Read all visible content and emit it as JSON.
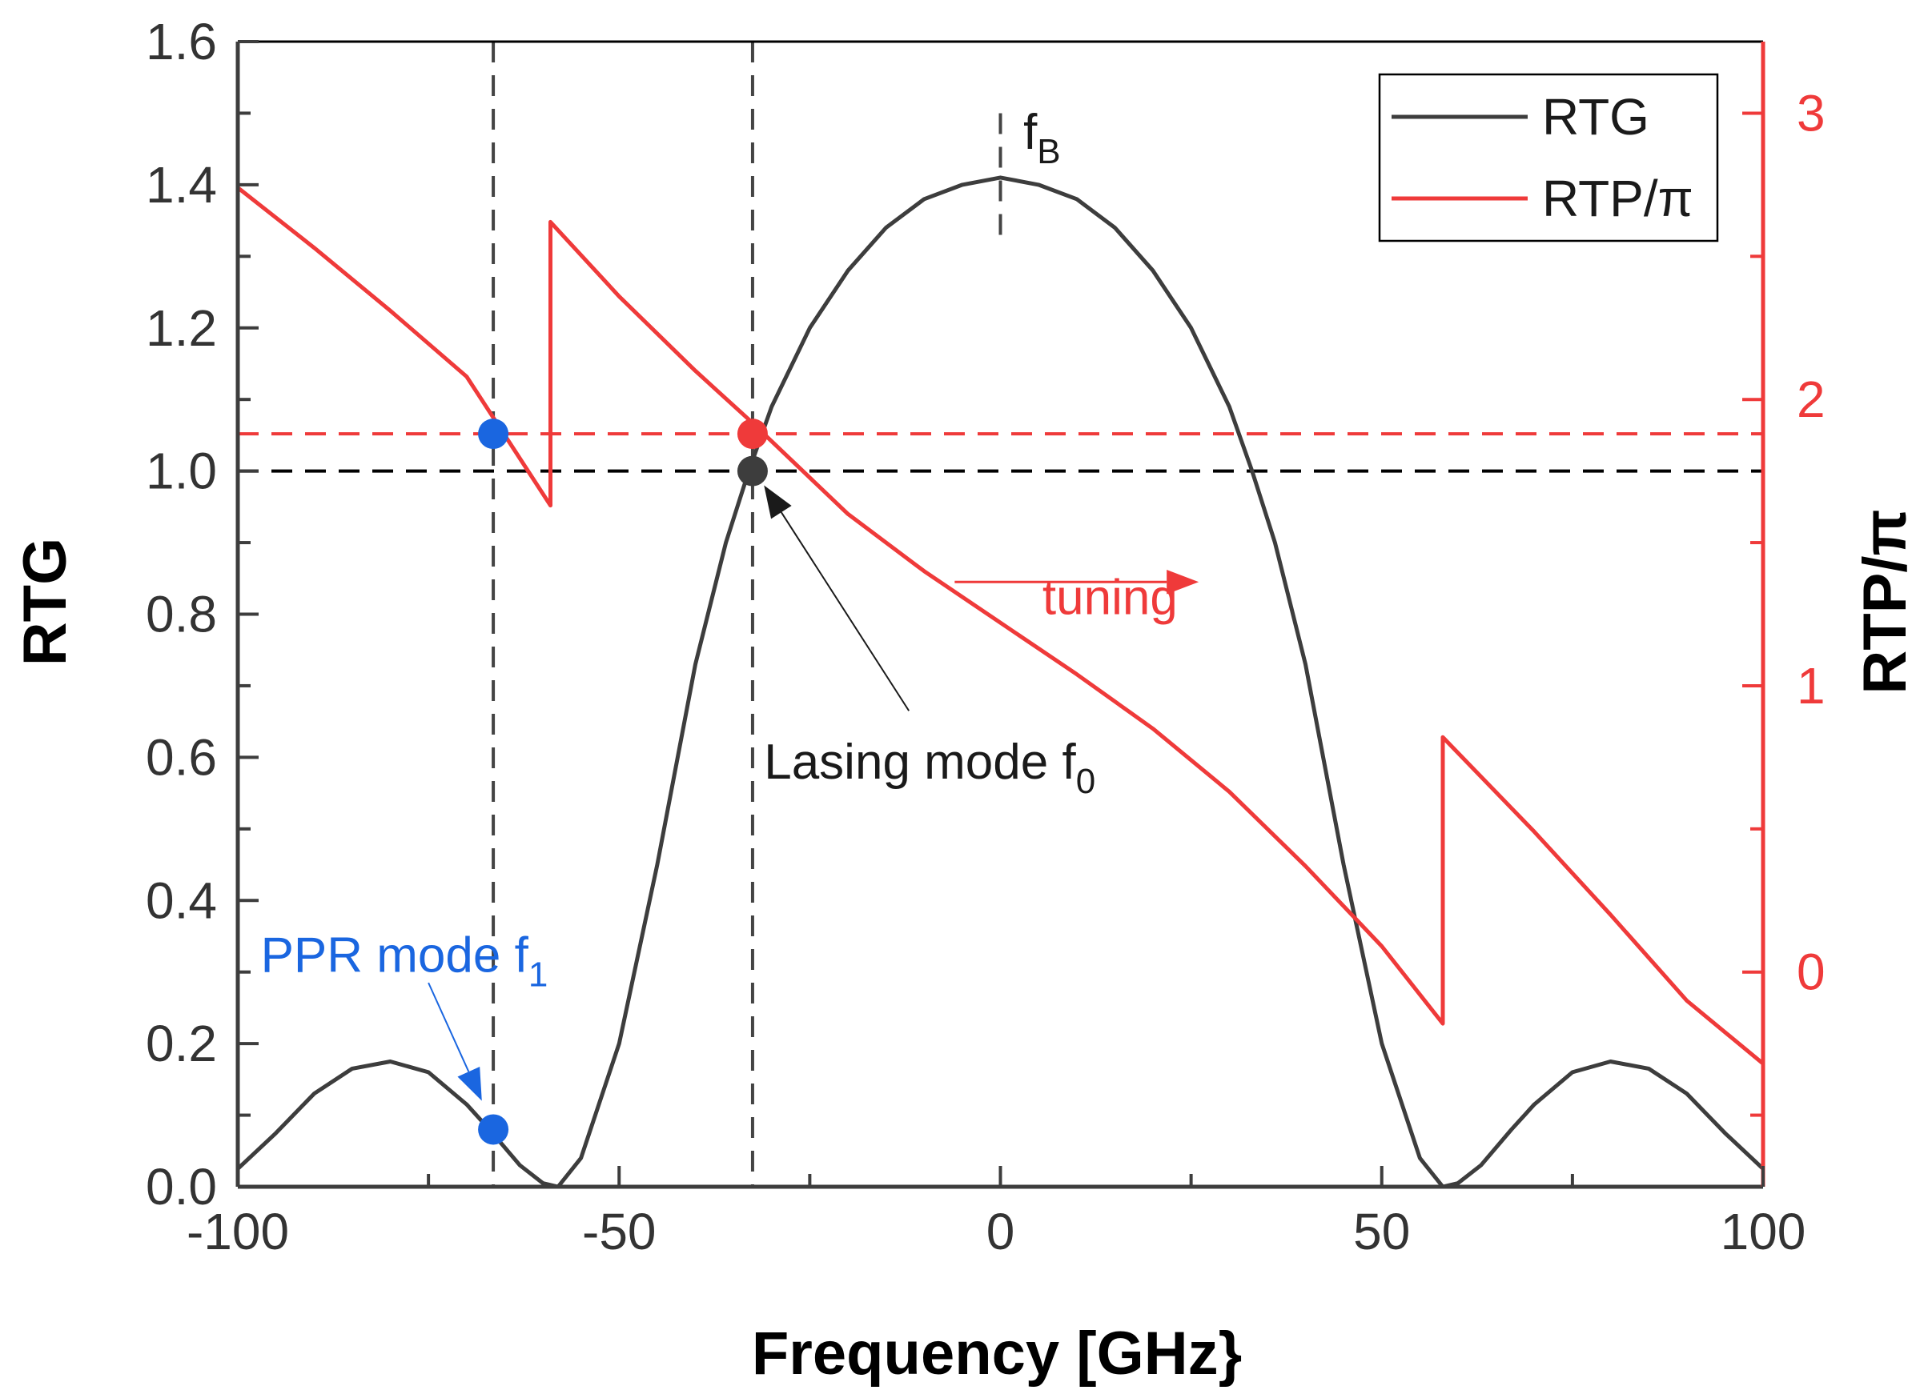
{
  "chart_data": {
    "type": "line",
    "xlabel": "Frequency [GHz}",
    "ylabel_left": "RTG",
    "ylabel_right": "RTP/π",
    "xlim": [
      -100,
      100
    ],
    "ylim_left": [
      0,
      1.6
    ],
    "ylim_right": [
      -0.75,
      3.25
    ],
    "x_ticks": [
      -100,
      -50,
      0,
      50,
      100
    ],
    "x_tick_labels": [
      "-100",
      "-50",
      "0",
      "50",
      "100"
    ],
    "y_left_ticks": [
      0.0,
      0.2,
      0.4,
      0.6,
      0.8,
      1.0,
      1.2,
      1.4,
      1.6
    ],
    "y_left_tick_labels": [
      "0.0",
      "0.2",
      "0.4",
      "0.6",
      "0.8",
      "1.0",
      "1.2",
      "1.4",
      "1.6"
    ],
    "y_right_ticks": [
      0,
      1,
      2,
      3
    ],
    "y_right_tick_labels": [
      "0",
      "1",
      "2",
      "3"
    ],
    "grid": false,
    "legend_position": "top-right",
    "series": [
      {
        "name": "RTG",
        "axis": "left",
        "color": "#3d3d3d",
        "x": [
          -100,
          -95,
          -90,
          -85,
          -80,
          -75,
          -70,
          -67,
          -63,
          -60,
          -58,
          -55,
          -50,
          -45,
          -40,
          -36,
          -33,
          -30,
          -25,
          -20,
          -15,
          -10,
          -5,
          0,
          5,
          10,
          15,
          20,
          25,
          30,
          33,
          36,
          40,
          45,
          50,
          55,
          58,
          60,
          63,
          67,
          70,
          75,
          80,
          85,
          90,
          95,
          100
        ],
        "y": [
          0.025,
          0.075,
          0.13,
          0.165,
          0.175,
          0.16,
          0.115,
          0.08,
          0.03,
          0.005,
          0.0,
          0.04,
          0.2,
          0.45,
          0.73,
          0.9,
          1.0,
          1.09,
          1.2,
          1.28,
          1.34,
          1.38,
          1.4,
          1.41,
          1.4,
          1.38,
          1.34,
          1.28,
          1.2,
          1.09,
          1.0,
          0.9,
          0.73,
          0.45,
          0.2,
          0.04,
          0.0,
          0.005,
          0.03,
          0.08,
          0.115,
          0.16,
          0.175,
          0.165,
          0.13,
          0.075,
          0.025
        ]
      },
      {
        "name": "RTP/π",
        "axis": "right",
        "color": "#ef3a3a",
        "x": [
          -100,
          -90,
          -80,
          -70,
          -59,
          -59,
          -50,
          -40,
          -33,
          -20,
          -10,
          0,
          10,
          20,
          30,
          40,
          50,
          58,
          58,
          70,
          80,
          90,
          100
        ],
        "y": [
          2.74,
          2.53,
          2.31,
          2.08,
          1.63,
          2.62,
          2.36,
          2.1,
          1.93,
          1.6,
          1.4,
          1.22,
          1.04,
          0.85,
          0.63,
          0.37,
          0.09,
          -0.18,
          0.82,
          0.49,
          0.2,
          -0.1,
          -0.32
        ]
      }
    ],
    "reference_lines": [
      {
        "axis": "left",
        "orientation": "horizontal",
        "value": 1.0,
        "color": "#000000",
        "style": "dashed"
      },
      {
        "axis": "right",
        "orientation": "horizontal",
        "value": 1.88,
        "color": "#ef3a3a",
        "style": "dashed"
      },
      {
        "orientation": "vertical",
        "value": -66.5,
        "color": "#444444",
        "style": "dashed"
      },
      {
        "orientation": "vertical",
        "value": -32.5,
        "color": "#444444",
        "style": "dashed"
      },
      {
        "orientation": "vertical",
        "value": 0,
        "y_range_left": [
          1.33,
          1.5
        ],
        "color": "#444444",
        "style": "dashed"
      }
    ],
    "markers": [
      {
        "x": -66.5,
        "y": 1.88,
        "axis": "right",
        "color": "#1a66e0"
      },
      {
        "x": -66.5,
        "y": 0.08,
        "axis": "left",
        "color": "#1a66e0"
      },
      {
        "x": -32.5,
        "y": 1.88,
        "axis": "right",
        "color": "#ef3a3a"
      },
      {
        "x": -32.5,
        "y": 1.0,
        "axis": "left",
        "color": "#3d3d3d"
      }
    ],
    "annotations": [
      {
        "text": "f",
        "sub": "B",
        "x": 3,
        "y_left": 1.45,
        "color": "#1a1a1a"
      },
      {
        "text": "tuning",
        "x": 5.5,
        "y_left": 0.8,
        "color": "#ef3a3a",
        "arrow": {
          "from_x": -6,
          "to_x": 26,
          "y_left": 0.845
        }
      },
      {
        "text": "Lasing mode f",
        "sub": "0",
        "x": -31,
        "y_left": 0.57,
        "color": "#1a1a1a",
        "arrow": {
          "from_x": -12,
          "from_y_left": 0.665,
          "to_x": -31,
          "to_y_left": 0.98
        }
      },
      {
        "text": "PPR mode f",
        "sub": "1",
        "x": -97,
        "y_left": 0.3,
        "color": "#1a66e0",
        "arrow": {
          "from_x": -75,
          "from_y_left": 0.285,
          "to_x": -68,
          "to_y_left": 0.12
        }
      }
    ]
  }
}
